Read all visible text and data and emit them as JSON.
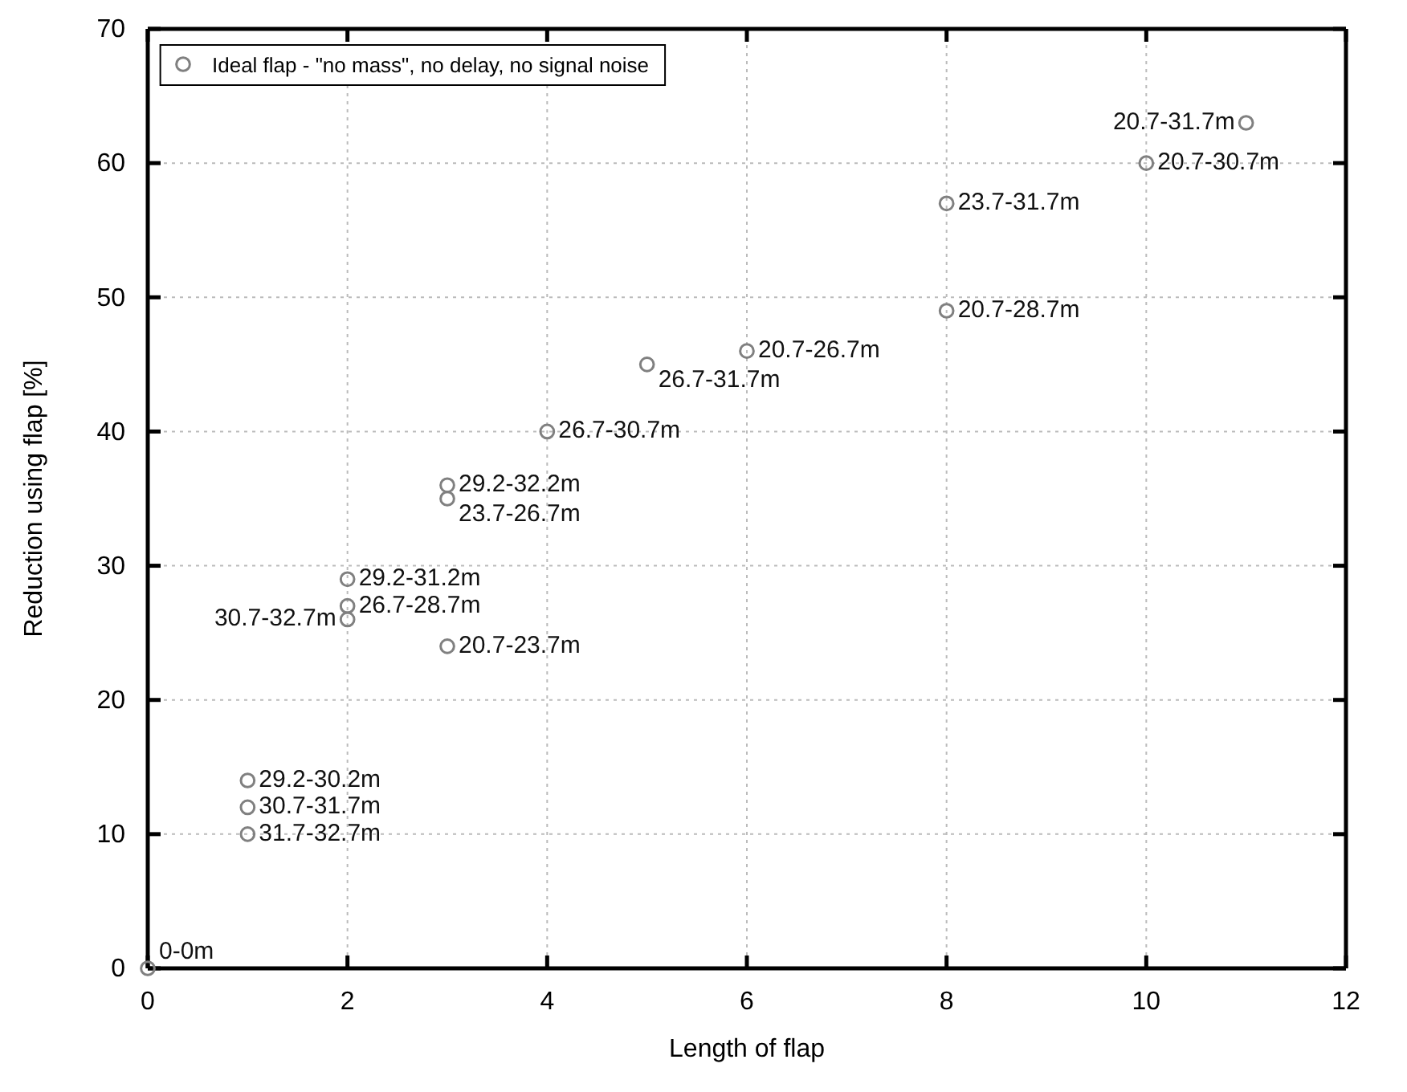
{
  "chart_data": {
    "type": "scatter",
    "xlabel": "Length of flap",
    "ylabel": "Reduction using flap [%]",
    "xlim": [
      0,
      12
    ],
    "ylim": [
      0,
      70
    ],
    "xticks": [
      0,
      2,
      4,
      6,
      8,
      10,
      12
    ],
    "yticks": [
      0,
      10,
      20,
      30,
      40,
      50,
      60,
      70
    ],
    "grid": true,
    "legend": "top left",
    "marker": "circle",
    "series": [
      {
        "name": "Ideal flap - \"no mass\", no delay, no signal noise",
        "color": "#808080",
        "x": [
          0,
          1,
          1,
          1,
          2,
          2,
          2,
          3,
          3,
          3,
          4,
          5,
          6,
          8,
          8,
          10,
          11
        ],
        "values": [
          0,
          14,
          12,
          10,
          29,
          27,
          26,
          24,
          36,
          35,
          40,
          45,
          46,
          49,
          57,
          60,
          63
        ]
      }
    ],
    "annotations": [
      {
        "text": "0-0m",
        "x": 0,
        "y": 0
      },
      {
        "text": "29.2-30.2m",
        "x": 1,
        "y": 14
      },
      {
        "text": "30.7-31.7m",
        "x": 1,
        "y": 12
      },
      {
        "text": "31.7-32.7m",
        "x": 1,
        "y": 10
      },
      {
        "text": "29.2-31.2m",
        "x": 2,
        "y": 29
      },
      {
        "text": "26.7-28.7m",
        "x": 2,
        "y": 27
      },
      {
        "text": "30.7-32.7m",
        "x": 2,
        "y": 26
      },
      {
        "text": "20.7-23.7m",
        "x": 3,
        "y": 24
      },
      {
        "text": "29.2-32.2m",
        "x": 3,
        "y": 36
      },
      {
        "text": "23.7-26.7m",
        "x": 3,
        "y": 35
      },
      {
        "text": "26.7-30.7m",
        "x": 4,
        "y": 40
      },
      {
        "text": "26.7-31.7m",
        "x": 5,
        "y": 45
      },
      {
        "text": "20.7-26.7m",
        "x": 6,
        "y": 46
      },
      {
        "text": "20.7-28.7m",
        "x": 8,
        "y": 49
      },
      {
        "text": "23.7-31.7m",
        "x": 8,
        "y": 57
      },
      {
        "text": "20.7-30.7m",
        "x": 10,
        "y": 60
      },
      {
        "text": "20.7-31.7m",
        "x": 11,
        "y": 63
      }
    ]
  }
}
